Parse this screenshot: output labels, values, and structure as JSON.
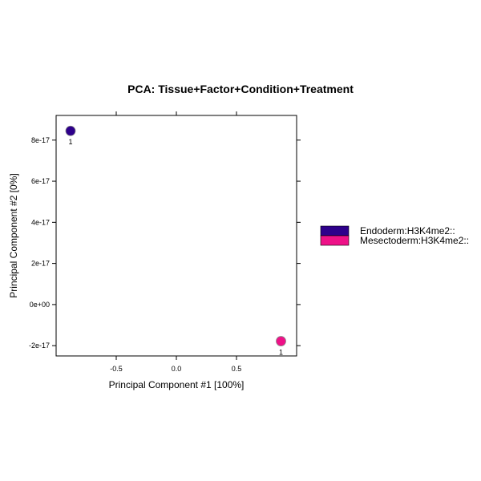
{
  "chart_data": {
    "type": "scatter",
    "title": "PCA: Tissue+Factor+Condition+Treatment",
    "xlabel": "Principal Component #1 [100%]",
    "ylabel": "Principal Component #2 [0%]",
    "xlim": [
      -1.0,
      1.0
    ],
    "ylim": [
      -2.5e-17,
      9.2e-17
    ],
    "x_ticks": [
      {
        "value": -0.5,
        "label": "-0.5"
      },
      {
        "value": 0.0,
        "label": "0.0"
      },
      {
        "value": 0.5,
        "label": "0.5"
      }
    ],
    "y_ticks": [
      {
        "value": -2e-17,
        "label": "-2e-17"
      },
      {
        "value": 0,
        "label": "0e+00"
      },
      {
        "value": 2e-17,
        "label": "2e-17"
      },
      {
        "value": 4e-17,
        "label": "4e-17"
      },
      {
        "value": 6e-17,
        "label": "6e-17"
      },
      {
        "value": 8e-17,
        "label": "8e-17"
      }
    ],
    "grid": false,
    "legend_position": "right",
    "series": [
      {
        "name": "Endoderm:H3K4me2::",
        "color": "#2e008b",
        "points": [
          {
            "x": -0.88,
            "y": 8.45e-17,
            "label": "1"
          }
        ]
      },
      {
        "name": "Mesectoderm:H3K4me2::",
        "color": "#ee1188",
        "points": [
          {
            "x": 0.87,
            "y": -1.78e-17,
            "label": "1"
          }
        ]
      }
    ]
  }
}
